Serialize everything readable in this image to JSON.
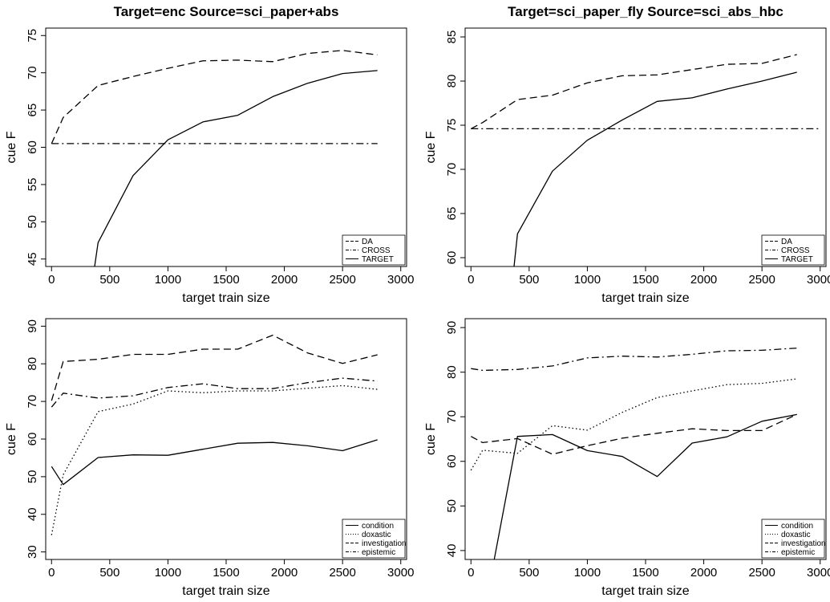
{
  "chart_data": [
    {
      "type": "line",
      "title": "Target=enc Source=sci_paper+abs",
      "xlabel": "target train size",
      "ylabel": "cue F",
      "xlim": [
        -50,
        3050
      ],
      "ylim": [
        44,
        76
      ],
      "xticks": [
        0,
        500,
        1000,
        1500,
        2000,
        2500,
        3000
      ],
      "yticks": [
        45,
        50,
        55,
        60,
        65,
        70,
        75
      ],
      "grid": false,
      "legend_position": "bottom-right",
      "series": [
        {
          "name": "DA",
          "style": "dashed",
          "x": [
            0,
            100,
            400,
            700,
            1000,
            1300,
            1600,
            1900,
            2200,
            2500,
            2800
          ],
          "y": [
            60.5,
            64,
            68.3,
            69.5,
            70.6,
            71.6,
            71.7,
            71.5,
            72.6,
            73,
            72.4
          ]
        },
        {
          "name": "CROSS",
          "style": "dashdot",
          "x": [
            0,
            2800
          ],
          "y": [
            60.5,
            60.5
          ]
        },
        {
          "name": "TARGET",
          "style": "solid",
          "x": [
            370,
            400,
            700,
            1000,
            1300,
            1600,
            1900,
            2200,
            2500,
            2800
          ],
          "y": [
            44,
            47.2,
            56.2,
            61,
            63.4,
            64.3,
            66.8,
            68.6,
            69.9,
            70.3
          ]
        }
      ]
    },
    {
      "type": "line",
      "title": "Target=sci_paper_fly Source=sci_abs_hbc",
      "xlabel": "target train size",
      "ylabel": "cue F",
      "xlim": [
        -50,
        3050
      ],
      "ylim": [
        59,
        86
      ],
      "xticks": [
        0,
        500,
        1000,
        1500,
        2000,
        2500,
        3000
      ],
      "yticks": [
        60,
        65,
        70,
        75,
        80,
        85
      ],
      "grid": false,
      "legend_position": "bottom-right",
      "series": [
        {
          "name": "DA",
          "style": "dashed",
          "x": [
            0,
            100,
            400,
            700,
            1000,
            1300,
            1600,
            1900,
            2200,
            2500,
            2800
          ],
          "y": [
            74.6,
            75.3,
            77.9,
            78.4,
            79.8,
            80.6,
            80.7,
            81.3,
            81.9,
            82,
            83
          ]
        },
        {
          "name": "CROSS",
          "style": "dashdot",
          "x": [
            0,
            3000
          ],
          "y": [
            74.6,
            74.6
          ]
        },
        {
          "name": "TARGET",
          "style": "solid",
          "x": [
            370,
            400,
            700,
            1000,
            1300,
            1600,
            1900,
            2200,
            2500,
            2800
          ],
          "y": [
            59,
            62.7,
            69.8,
            73.3,
            75.6,
            77.7,
            78.1,
            79.1,
            80,
            81
          ]
        }
      ]
    },
    {
      "type": "line",
      "title": "",
      "xlabel": "target train size",
      "ylabel": "cue F",
      "xlim": [
        -50,
        3050
      ],
      "ylim": [
        28,
        92
      ],
      "xticks": [
        0,
        500,
        1000,
        1500,
        2000,
        2500,
        3000
      ],
      "yticks": [
        30,
        40,
        50,
        60,
        70,
        80,
        90
      ],
      "grid": false,
      "legend_position": "bottom-right",
      "series": [
        {
          "name": "condition",
          "style": "solid",
          "x": [
            0,
            100,
            400,
            700,
            1000,
            1300,
            1600,
            1900,
            2200,
            2500,
            2800
          ],
          "y": [
            52.7,
            47.9,
            55.1,
            55.8,
            55.7,
            57.3,
            58.9,
            59.1,
            58.2,
            56.9,
            59.8
          ]
        },
        {
          "name": "doxastic",
          "style": "dotted",
          "x": [
            0,
            100,
            400,
            700,
            1000,
            1300,
            1600,
            1900,
            2200,
            2500,
            2800
          ],
          "y": [
            34.5,
            50.5,
            67.3,
            69.3,
            72.8,
            72.3,
            72.8,
            72.8,
            73.5,
            74.2,
            73.2
          ]
        },
        {
          "name": "investigation",
          "style": "dashed",
          "x": [
            0,
            100,
            400,
            700,
            1000,
            1300,
            1600,
            1900,
            2200,
            2500,
            2800
          ],
          "y": [
            70.2,
            80.6,
            81.2,
            82.5,
            82.5,
            83.9,
            83.9,
            87.6,
            82.9,
            80.1,
            82.4
          ]
        },
        {
          "name": "epistemic",
          "style": "dashdot",
          "x": [
            0,
            100,
            400,
            700,
            1000,
            1300,
            1600,
            1900,
            2200,
            2500,
            2800
          ],
          "y": [
            68.5,
            72.2,
            70.9,
            71.5,
            73.7,
            74.7,
            73.4,
            73.4,
            75,
            76.2,
            75.4
          ]
        }
      ]
    },
    {
      "type": "line",
      "title": "",
      "xlabel": "target train size",
      "ylabel": "cue F",
      "xlim": [
        -50,
        3050
      ],
      "ylim": [
        38,
        92
      ],
      "xticks": [
        0,
        500,
        1000,
        1500,
        2000,
        2500,
        3000
      ],
      "yticks": [
        40,
        50,
        60,
        70,
        80,
        90
      ],
      "grid": false,
      "legend_position": "bottom-right",
      "series": [
        {
          "name": "condition",
          "style": "solid",
          "x": [
            200,
            400,
            700,
            1000,
            1300,
            1600,
            1900,
            2200,
            2500,
            2800
          ],
          "y": [
            38,
            65.6,
            66,
            62.4,
            61.1,
            56.6,
            64.1,
            65.5,
            69,
            70.5
          ]
        },
        {
          "name": "doxastic",
          "style": "dotted",
          "x": [
            0,
            100,
            400,
            700,
            1000,
            1300,
            1600,
            1900,
            2200,
            2500,
            2800
          ],
          "y": [
            58,
            62.5,
            61.8,
            68,
            67,
            71,
            74.3,
            75.8,
            77.2,
            77.5,
            78.5
          ]
        },
        {
          "name": "investigation",
          "style": "dashed",
          "x": [
            0,
            100,
            400,
            700,
            1000,
            1300,
            1600,
            1900,
            2200,
            2500,
            2800
          ],
          "y": [
            65.6,
            64.2,
            65.1,
            61.6,
            63.5,
            65.2,
            66.3,
            67.3,
            66.9,
            66.9,
            70.5
          ]
        },
        {
          "name": "epistemic",
          "style": "dashdot",
          "x": [
            0,
            100,
            400,
            700,
            1000,
            1300,
            1600,
            1900,
            2200,
            2500,
            2800
          ],
          "y": [
            80.8,
            80.4,
            80.6,
            81.4,
            83.2,
            83.6,
            83.4,
            84,
            84.8,
            84.9,
            85.4
          ]
        }
      ]
    }
  ]
}
